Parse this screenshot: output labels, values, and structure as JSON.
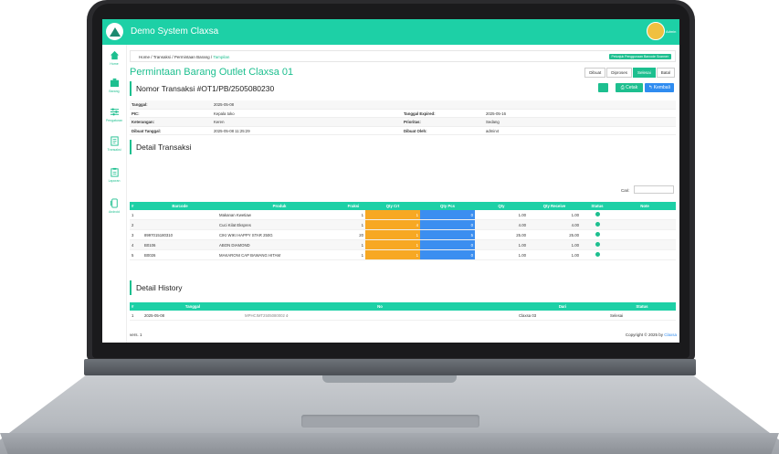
{
  "app": {
    "title": "Demo System Claxsa",
    "user": "Admin"
  },
  "sidebar": {
    "items": [
      {
        "label": "Home",
        "icon": "home-icon"
      },
      {
        "label": "Barang",
        "icon": "box-icon"
      },
      {
        "label": "Pengaturan",
        "icon": "sliders-icon"
      },
      {
        "label": "Transaksi",
        "icon": "document-icon"
      },
      {
        "label": "Laporan",
        "icon": "report-icon"
      },
      {
        "label": "Android",
        "icon": "android-icon"
      }
    ]
  },
  "breadcrumb": {
    "items": [
      "Home",
      "Transaksi",
      "Permintaan Barang"
    ],
    "current": "Tampilan",
    "sep": "/"
  },
  "guide_button": "Petunjuk Penggunaan Barcode Scanner",
  "page_title": "Permintaan Barang Outlet Claxsa 01",
  "status_tabs": [
    {
      "label": "Dibuat",
      "active": false
    },
    {
      "label": "Diproses",
      "active": false
    },
    {
      "label": "Selesai",
      "active": true
    },
    {
      "label": "Batal",
      "active": false
    }
  ],
  "header": {
    "title": "Nomor Transaksi #OT1/PB/2505080230",
    "print_label": "Cetak",
    "back_label": "Kembali"
  },
  "info": {
    "tanggal_label": "Tanggal:",
    "tanggal": "2025-05-08",
    "pic_label": "PIC:",
    "pic": "Kepala toko",
    "expired_label": "Tanggal Expired:",
    "expired": "2025-05-16",
    "ket_label": "Keterangan:",
    "ket": "Keren",
    "prioritas_label": "Prioritas:",
    "prioritas": "Sedang",
    "dibuat_tgl_label": "Dibuat Tanggal:",
    "dibuat_tgl": "2025-05-08 11:25:29",
    "dibuat_oleh_label": "Dibuat Oleh:",
    "dibuat_oleh": "admin4"
  },
  "detail": {
    "title": "Detail Transaksi",
    "search_label": "Cari:",
    "columns": [
      "#",
      "Barcode",
      "Produk",
      "Fraksi",
      "Qty Crt",
      "Qty Pcs",
      "Qty",
      "Qty Receive",
      "Status",
      "Note"
    ],
    "rows": [
      {
        "no": "1",
        "barcode": "",
        "produk": "Makanan Kwetiaw",
        "fraksi": "1",
        "qty_crt": "1",
        "qty_pcs": "0",
        "qty": "1.00",
        "qty_receive": "1.00"
      },
      {
        "no": "2",
        "barcode": "",
        "produk": "Cuci Kilat Ekspres",
        "fraksi": "1",
        "qty_crt": "4",
        "qty_pcs": "0",
        "qty": "4.00",
        "qty_receive": "4.00"
      },
      {
        "no": "3",
        "barcode": "8997015180310",
        "produk": "CIKI WIKI HAPPY STAR 250G",
        "fraksi": "20",
        "qty_crt": "1",
        "qty_pcs": "5",
        "qty": "25.00",
        "qty_receive": "25.00"
      },
      {
        "no": "4",
        "barcode": "B0106",
        "produk": "ABON DIAMOND",
        "fraksi": "1",
        "qty_crt": "1",
        "qty_pcs": "0",
        "qty": "1.00",
        "qty_receive": "1.00"
      },
      {
        "no": "5",
        "barcode": "B0026",
        "produk": "MAKARONI CAP BAWANG HITAM",
        "fraksi": "1",
        "qty_crt": "1",
        "qty_pcs": "0",
        "qty": "1.00",
        "qty_receive": "1.00"
      }
    ]
  },
  "history": {
    "title": "Detail History",
    "columns": [
      "#",
      "Tanggal",
      "No",
      "Dari",
      "Status"
    ],
    "rows": [
      {
        "no": "1",
        "tanggal": "2025-05-08",
        "nomor": "MPHCIMT2505080002",
        "dari": "Claxsa 03",
        "status": "Selesai"
      }
    ]
  },
  "footer": {
    "version": "vers. 1",
    "copyright": "Copyright © 2025 by",
    "brand": "Claxsa"
  },
  "colors": {
    "accent": "#1dd0a6",
    "primary": "#2f8cf0",
    "qty_crt": "#f7a823",
    "qty_pcs": "#3b8ef0"
  }
}
